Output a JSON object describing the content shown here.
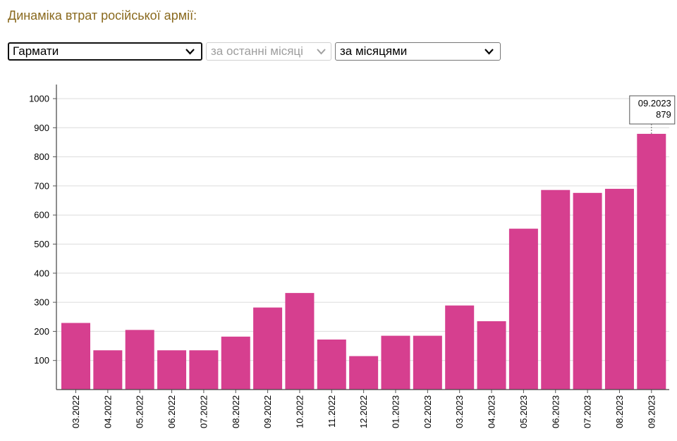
{
  "title": "Динаміка втрат російської армії:",
  "controls": {
    "category_select": {
      "value": "Гармати"
    },
    "period_select": {
      "value": "за останні місяці"
    },
    "grouping_select": {
      "value": "за місяцями"
    }
  },
  "chart_data": {
    "type": "bar",
    "title": "",
    "xlabel": "",
    "ylabel": "",
    "categories": [
      "03.2022",
      "04.2022",
      "05.2022",
      "06.2022",
      "07.2022",
      "08.2022",
      "09.2022",
      "10.2022",
      "11.2022",
      "12.2022",
      "01.2023",
      "02.2023",
      "03.2023",
      "04.2023",
      "05.2023",
      "06.2023",
      "07.2023",
      "08.2023",
      "09.2023"
    ],
    "values": [
      229,
      135,
      205,
      135,
      135,
      182,
      282,
      332,
      172,
      115,
      185,
      185,
      289,
      235,
      553,
      686,
      676,
      690,
      879
    ],
    "ylim": [
      0,
      1000
    ],
    "yticks": [
      100,
      200,
      300,
      400,
      500,
      600,
      700,
      800,
      900,
      1000
    ],
    "grid": true,
    "bar_color": "#d63f8f",
    "tooltip": {
      "label": "09.2023",
      "value": "879"
    }
  }
}
